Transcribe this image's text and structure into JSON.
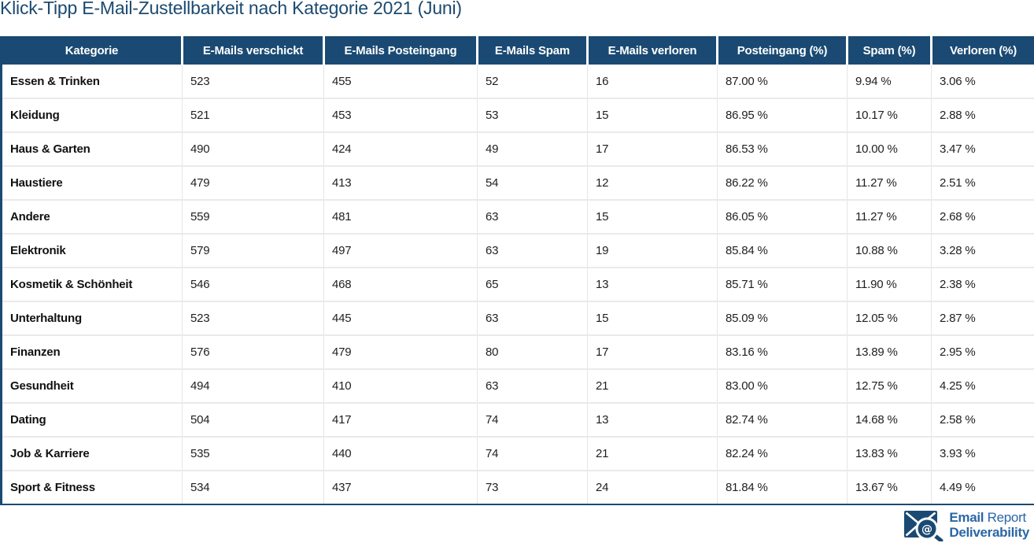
{
  "title": "Klick-Tipp E-Mail-Zustellbarkeit nach Kategorie 2021 (Juni)",
  "colors": {
    "header_bg": "#1a4a73",
    "title_text": "#1b4a70",
    "logo_text": "#2a67a4",
    "row_separator": "#eaeaea",
    "table_border": "#1a4a73"
  },
  "table": {
    "columns": [
      "Kategorie",
      "E-Mails verschickt",
      "E-Mails Posteingang",
      "E-Mails Spam",
      "E-Mails verloren",
      "Posteingang (%)",
      "Spam (%)",
      "Verloren (%)"
    ],
    "rows": [
      [
        "Essen & Trinken",
        "523",
        "455",
        "52",
        "16",
        "87.00 %",
        "9.94 %",
        "3.06 %"
      ],
      [
        "Kleidung",
        "521",
        "453",
        "53",
        "15",
        "86.95 %",
        "10.17 %",
        "2.88 %"
      ],
      [
        "Haus & Garten",
        "490",
        "424",
        "49",
        "17",
        "86.53 %",
        "10.00 %",
        "3.47 %"
      ],
      [
        "Haustiere",
        "479",
        "413",
        "54",
        "12",
        "86.22 %",
        "11.27 %",
        "2.51 %"
      ],
      [
        "Andere",
        "559",
        "481",
        "63",
        "15",
        "86.05 %",
        "11.27 %",
        "2.68 %"
      ],
      [
        "Elektronik",
        "579",
        "497",
        "63",
        "19",
        "85.84 %",
        "10.88 %",
        "3.28 %"
      ],
      [
        "Kosmetik & Schönheit",
        "546",
        "468",
        "65",
        "13",
        "85.71 %",
        "11.90 %",
        "2.38 %"
      ],
      [
        "Unterhaltung",
        "523",
        "445",
        "63",
        "15",
        "85.09 %",
        "12.05 %",
        "2.87 %"
      ],
      [
        "Finanzen",
        "576",
        "479",
        "80",
        "17",
        "83.16 %",
        "13.89 %",
        "2.95 %"
      ],
      [
        "Gesundheit",
        "494",
        "410",
        "63",
        "21",
        "83.00 %",
        "12.75 %",
        "4.25 %"
      ],
      [
        "Dating",
        "504",
        "417",
        "74",
        "13",
        "82.74 %",
        "14.68 %",
        "2.58 %"
      ],
      [
        "Job & Karriere",
        "535",
        "440",
        "74",
        "21",
        "82.24 %",
        "13.83 %",
        "3.93 %"
      ],
      [
        "Sport & Fitness",
        "534",
        "437",
        "73",
        "24",
        "81.84 %",
        "13.67 %",
        "4.49 %"
      ]
    ]
  },
  "logo": {
    "icon": "envelope-magnifier-at-icon",
    "line1_bold": "Email",
    "line1_regular": " Report",
    "line2_bold": "Deliverability"
  },
  "chart_data": {
    "type": "table",
    "title": "Klick-Tipp E-Mail-Zustellbarkeit nach Kategorie 2021 (Juni)",
    "categories": [
      "Essen & Trinken",
      "Kleidung",
      "Haus & Garten",
      "Haustiere",
      "Andere",
      "Elektronik",
      "Kosmetik & Schönheit",
      "Unterhaltung",
      "Finanzen",
      "Gesundheit",
      "Dating",
      "Job & Karriere",
      "Sport & Fitness"
    ],
    "series": [
      {
        "name": "E-Mails verschickt",
        "values": [
          523,
          521,
          490,
          479,
          559,
          579,
          546,
          523,
          576,
          494,
          504,
          535,
          534
        ]
      },
      {
        "name": "E-Mails Posteingang",
        "values": [
          455,
          453,
          424,
          413,
          481,
          497,
          468,
          445,
          479,
          410,
          417,
          440,
          437
        ]
      },
      {
        "name": "E-Mails Spam",
        "values": [
          52,
          53,
          49,
          54,
          63,
          63,
          65,
          63,
          80,
          63,
          74,
          74,
          73
        ]
      },
      {
        "name": "E-Mails verloren",
        "values": [
          16,
          15,
          17,
          12,
          15,
          19,
          13,
          15,
          17,
          21,
          13,
          21,
          24
        ]
      },
      {
        "name": "Posteingang (%)",
        "values": [
          87.0,
          86.95,
          86.53,
          86.22,
          86.05,
          85.84,
          85.71,
          85.09,
          83.16,
          83.0,
          82.74,
          82.24,
          81.84
        ]
      },
      {
        "name": "Spam (%)",
        "values": [
          9.94,
          10.17,
          10.0,
          11.27,
          11.27,
          10.88,
          11.9,
          12.05,
          13.89,
          12.75,
          14.68,
          13.83,
          13.67
        ]
      },
      {
        "name": "Verloren (%)",
        "values": [
          3.06,
          2.88,
          3.47,
          2.51,
          2.68,
          3.28,
          2.38,
          2.87,
          2.95,
          4.25,
          2.58,
          3.93,
          4.49
        ]
      }
    ]
  }
}
